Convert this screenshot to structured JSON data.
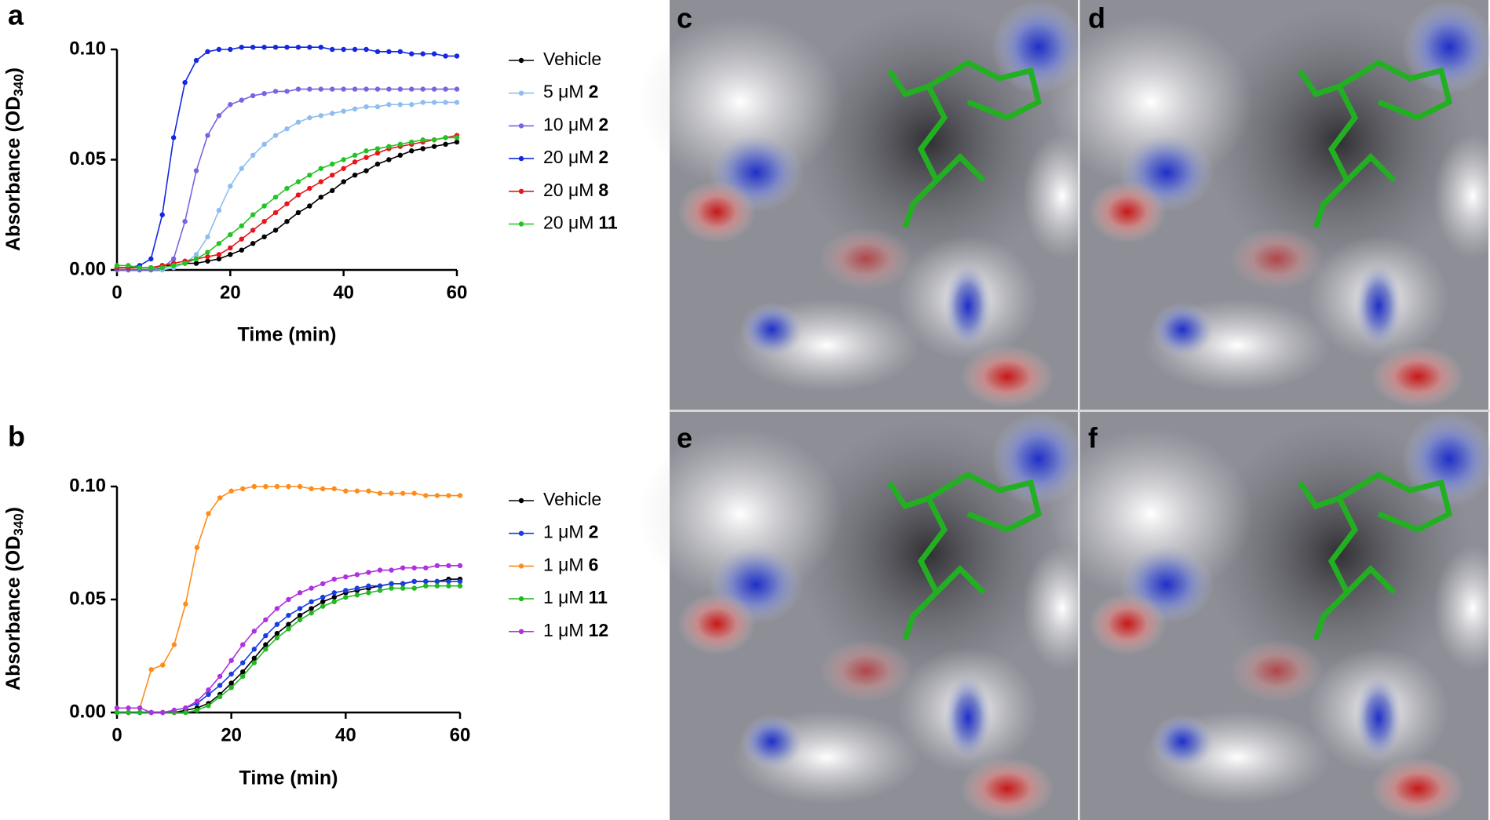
{
  "chart_data": [
    {
      "type": "line",
      "panel": "a",
      "x_label": "Time (min)",
      "y_label": "Absorbance (OD",
      "y_label_sub": "340",
      "y_label_end": ")",
      "x": [
        0,
        2,
        4,
        6,
        8,
        10,
        12,
        14,
        16,
        18,
        20,
        22,
        24,
        26,
        28,
        30,
        32,
        34,
        36,
        38,
        40,
        42,
        44,
        46,
        48,
        50,
        52,
        54,
        56,
        58,
        60
      ],
      "xlim": [
        0,
        60
      ],
      "xticks": [
        0,
        20,
        40,
        60
      ],
      "ylim": [
        0,
        0.1
      ],
      "yticks": [
        {
          "value": 0,
          "label": "0.00"
        },
        {
          "value": 0.05,
          "label": "0.05"
        },
        {
          "value": 0.1,
          "label": "0.10"
        }
      ],
      "series": [
        {
          "name": "Vehicle",
          "color": "#000000",
          "values": [
            0.001,
            0.001,
            0.001,
            0.001,
            0.002,
            0.002,
            0.003,
            0.003,
            0.004,
            0.005,
            0.007,
            0.009,
            0.012,
            0.015,
            0.018,
            0.022,
            0.026,
            0.029,
            0.033,
            0.036,
            0.04,
            0.043,
            0.045,
            0.048,
            0.05,
            0.052,
            0.054,
            0.055,
            0.056,
            0.057,
            0.058
          ]
        },
        {
          "name": "5 μM",
          "compound": "2",
          "color": "#8fbdf0",
          "values": [
            0,
            0,
            0,
            0,
            0,
            0.001,
            0.003,
            0.007,
            0.015,
            0.027,
            0.038,
            0.046,
            0.052,
            0.057,
            0.061,
            0.064,
            0.067,
            0.069,
            0.07,
            0.071,
            0.072,
            0.073,
            0.074,
            0.074,
            0.075,
            0.075,
            0.075,
            0.076,
            0.076,
            0.076,
            0.076
          ]
        },
        {
          "name": "10 μM",
          "compound": "2",
          "color": "#7466e0",
          "values": [
            0,
            0,
            0,
            0,
            0.001,
            0.005,
            0.022,
            0.045,
            0.061,
            0.07,
            0.075,
            0.077,
            0.079,
            0.08,
            0.081,
            0.081,
            0.082,
            0.082,
            0.082,
            0.082,
            0.082,
            0.082,
            0.082,
            0.082,
            0.082,
            0.082,
            0.082,
            0.082,
            0.082,
            0.082,
            0.082
          ]
        },
        {
          "name": "20 μM",
          "compound": "2",
          "color": "#1428e0",
          "values": [
            0.001,
            0.001,
            0.002,
            0.005,
            0.025,
            0.06,
            0.085,
            0.095,
            0.099,
            0.1,
            0.1,
            0.101,
            0.101,
            0.101,
            0.101,
            0.101,
            0.101,
            0.101,
            0.101,
            0.1,
            0.1,
            0.1,
            0.1,
            0.099,
            0.099,
            0.099,
            0.098,
            0.098,
            0.098,
            0.097,
            0.097
          ]
        },
        {
          "name": "20 μM",
          "compound": "8",
          "color": "#e8161b",
          "values": [
            0.001,
            0.001,
            0.001,
            0.001,
            0.002,
            0.003,
            0.004,
            0.005,
            0.006,
            0.007,
            0.01,
            0.014,
            0.018,
            0.022,
            0.026,
            0.03,
            0.034,
            0.037,
            0.04,
            0.043,
            0.046,
            0.049,
            0.051,
            0.053,
            0.055,
            0.056,
            0.057,
            0.058,
            0.059,
            0.06,
            0.061
          ]
        },
        {
          "name": "20 μM",
          "compound": "11",
          "color": "#22c422",
          "values": [
            0.002,
            0.002,
            0.001,
            0.001,
            0.001,
            0.002,
            0.003,
            0.005,
            0.008,
            0.012,
            0.016,
            0.02,
            0.025,
            0.029,
            0.033,
            0.037,
            0.04,
            0.043,
            0.046,
            0.048,
            0.05,
            0.052,
            0.054,
            0.055,
            0.056,
            0.057,
            0.058,
            0.059,
            0.059,
            0.06,
            0.06
          ]
        }
      ]
    },
    {
      "type": "line",
      "panel": "b",
      "x_label": "Time (min)",
      "y_label": "Absorbance (OD",
      "y_label_sub": "340",
      "y_label_end": ")",
      "x": [
        0,
        2,
        4,
        6,
        8,
        10,
        12,
        14,
        16,
        18,
        20,
        22,
        24,
        26,
        28,
        30,
        32,
        34,
        36,
        38,
        40,
        42,
        44,
        46,
        48,
        50,
        52,
        54,
        56,
        58,
        60
      ],
      "xlim": [
        0,
        60
      ],
      "xticks": [
        0,
        20,
        40,
        60
      ],
      "ylim": [
        0,
        0.1
      ],
      "yticks": [
        {
          "value": 0,
          "label": "0.00"
        },
        {
          "value": 0.05,
          "label": "0.05"
        },
        {
          "value": 0.1,
          "label": "0.10"
        }
      ],
      "series": [
        {
          "name": "Vehicle",
          "color": "#000000",
          "values": [
            0,
            0,
            0,
            0,
            0,
            0,
            0.001,
            0.002,
            0.004,
            0.008,
            0.013,
            0.018,
            0.024,
            0.03,
            0.035,
            0.039,
            0.043,
            0.046,
            0.049,
            0.051,
            0.053,
            0.054,
            0.055,
            0.056,
            0.057,
            0.057,
            0.058,
            0.058,
            0.058,
            0.059,
            0.059
          ]
        },
        {
          "name": "1 μM",
          "compound": "2",
          "color": "#1a3ce0",
          "values": [
            0,
            0,
            0,
            0,
            0,
            0.001,
            0.002,
            0.004,
            0.008,
            0.012,
            0.017,
            0.022,
            0.028,
            0.034,
            0.039,
            0.043,
            0.046,
            0.049,
            0.051,
            0.053,
            0.054,
            0.055,
            0.056,
            0.056,
            0.057,
            0.057,
            0.058,
            0.058,
            0.058,
            0.058,
            0.058
          ]
        },
        {
          "name": "1 μM",
          "compound": "6",
          "color": "#ff8c1a",
          "values": [
            null,
            null,
            0.002,
            0.019,
            0.021,
            0.03,
            0.048,
            0.073,
            0.088,
            0.095,
            0.098,
            0.099,
            0.1,
            0.1,
            0.1,
            0.1,
            0.1,
            0.099,
            0.099,
            0.099,
            0.098,
            0.098,
            0.098,
            0.097,
            0.097,
            0.097,
            0.097,
            0.096,
            0.096,
            0.096,
            0.096
          ]
        },
        {
          "name": "1 μM",
          "compound": "11",
          "color": "#22b822",
          "values": [
            0,
            0,
            0,
            0,
            0,
            0,
            0,
            0.001,
            0.003,
            0.007,
            0.011,
            0.016,
            0.022,
            0.028,
            0.033,
            0.037,
            0.041,
            0.044,
            0.047,
            0.049,
            0.051,
            0.052,
            0.053,
            0.054,
            0.055,
            0.055,
            0.055,
            0.056,
            0.056,
            0.056,
            0.056
          ]
        },
        {
          "name": "1 μM",
          "compound": "12",
          "color": "#b030e0",
          "values": [
            0.002,
            0.002,
            0.002,
            0,
            0,
            0.001,
            0.002,
            0.005,
            0.01,
            0.016,
            0.023,
            0.03,
            0.036,
            0.041,
            0.046,
            0.05,
            0.053,
            0.055,
            0.057,
            0.059,
            0.06,
            0.061,
            0.062,
            0.063,
            0.063,
            0.064,
            0.064,
            0.064,
            0.065,
            0.065,
            0.065
          ]
        }
      ]
    }
  ],
  "images": [
    {
      "label": "c"
    },
    {
      "label": "d"
    },
    {
      "label": "e"
    },
    {
      "label": "f"
    }
  ]
}
